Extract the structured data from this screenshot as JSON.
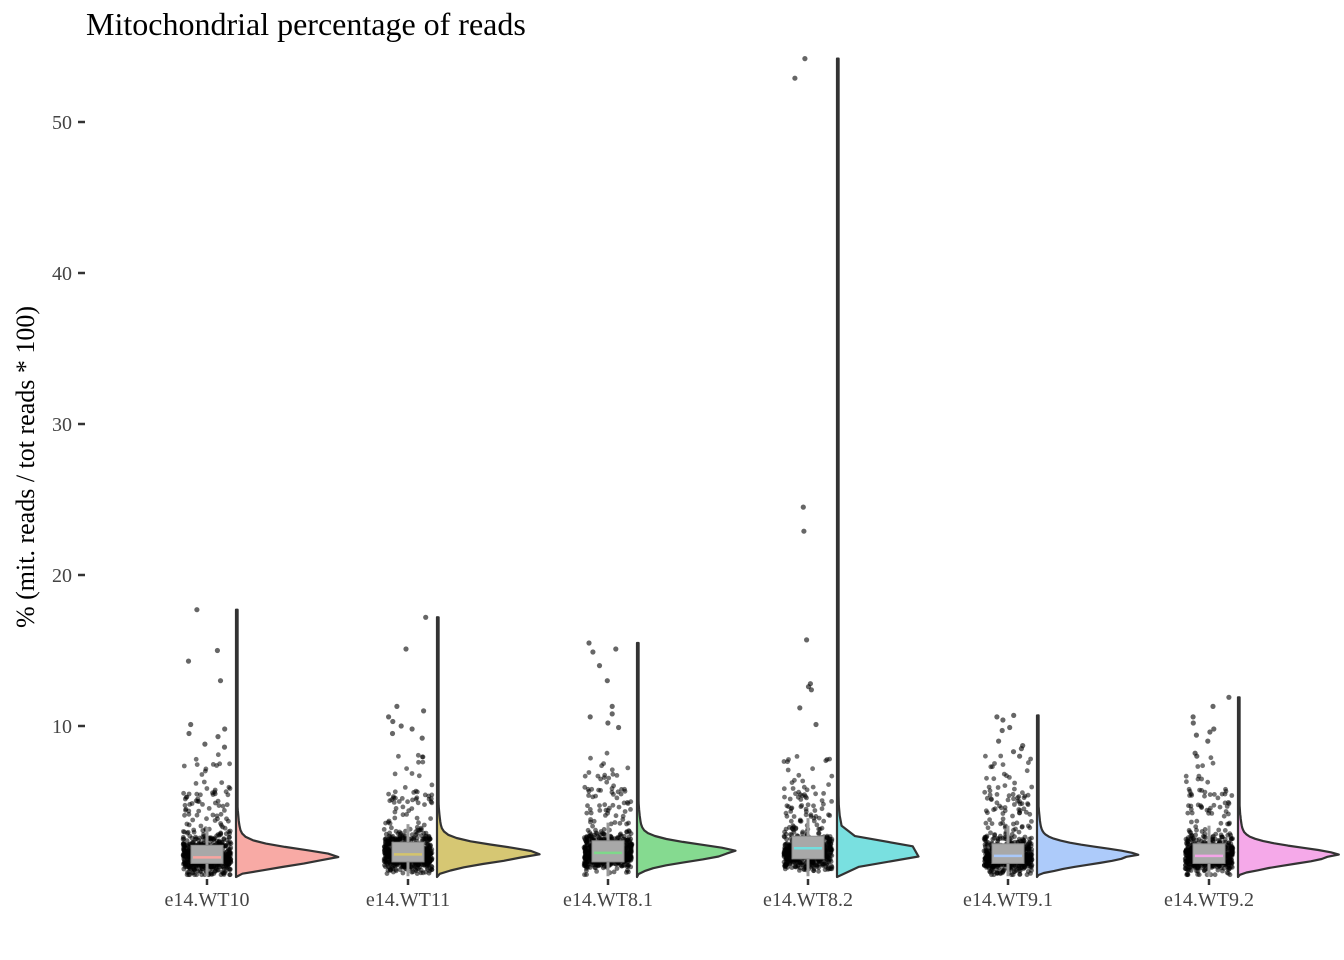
{
  "chart_data": {
    "type": "raincloud",
    "title": "Mitochondrial percentage of reads",
    "xlabel": "",
    "ylabel": "% (mit. reads / tot reads * 100)",
    "ylim": [
      0,
      54
    ],
    "yticks": [
      10,
      20,
      30,
      40,
      50
    ],
    "grid": false,
    "legend": "none",
    "categories": [
      "e14.WT10",
      "e14.WT11",
      "e14.WT8.1",
      "e14.WT8.2",
      "e14.WT9.1",
      "e14.WT9.2"
    ],
    "groups": [
      {
        "name": "e14.WT10",
        "color": "#F8A5A0",
        "median": 1.3,
        "q1": 0.9,
        "q3": 2.1,
        "max": 17.7,
        "mode": 1.3,
        "outliers": [
          17.7,
          15.0,
          14.3,
          13.0,
          10.1,
          9.8,
          9.5,
          9.3,
          8.8,
          8.6
        ]
      },
      {
        "name": "e14.WT11",
        "color": "#D4C46C",
        "median": 1.5,
        "q1": 1.0,
        "q3": 2.3,
        "max": 17.2,
        "mode": 1.5,
        "outliers": [
          17.2,
          15.1,
          11.3,
          11.0,
          10.6,
          10.3,
          10.0,
          9.8,
          9.5,
          9.2
        ]
      },
      {
        "name": "e14.WT8.1",
        "color": "#7ED88A",
        "median": 1.6,
        "q1": 1.0,
        "q3": 2.4,
        "max": 15.5,
        "mode": 1.6,
        "outliers": [
          15.5,
          15.1,
          14.9,
          14.0,
          13.0,
          11.3,
          10.8,
          10.6,
          10.2,
          9.9
        ]
      },
      {
        "name": "e14.WT8.2",
        "color": "#72DEDE",
        "median": 1.9,
        "q1": 1.2,
        "q3": 2.7,
        "max": 54.2,
        "mode": 1.6,
        "outliers": [
          54.2,
          52.9,
          24.5,
          22.9,
          15.7,
          12.8,
          12.6,
          12.4,
          11.2,
          10.1
        ]
      },
      {
        "name": "e14.WT9.1",
        "color": "#A9C8FA",
        "median": 1.4,
        "q1": 0.9,
        "q3": 2.2,
        "max": 10.7,
        "mode": 1.4,
        "outliers": [
          10.7,
          10.6,
          10.4,
          9.9,
          9.7,
          9.0,
          8.7,
          8.5,
          8.3,
          8.0
        ]
      },
      {
        "name": "e14.WT9.2",
        "color": "#F4A4E8",
        "median": 1.4,
        "q1": 0.9,
        "q3": 2.2,
        "max": 11.9,
        "mode": 1.4,
        "outliers": [
          11.9,
          11.3,
          10.6,
          10.2,
          9.8,
          9.6,
          9.4,
          9.0,
          8.2,
          8.0
        ]
      }
    ]
  }
}
